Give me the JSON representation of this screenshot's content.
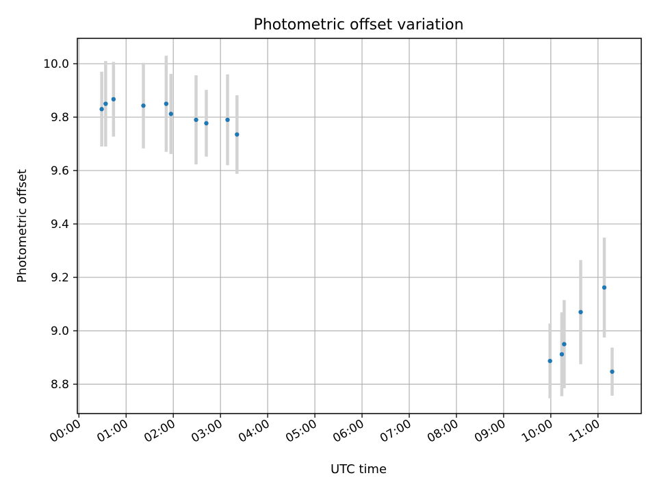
{
  "chart_data": {
    "type": "scatter",
    "title": "Photometric offset variation",
    "xlabel": "UTC time",
    "ylabel": "Photometric offset",
    "x_ticks": [
      "00:00",
      "01:00",
      "02:00",
      "03:00",
      "04:00",
      "05:00",
      "06:00",
      "07:00",
      "08:00",
      "09:00",
      "10:00",
      "11:00"
    ],
    "y_ticks": [
      "8.8",
      "9.0",
      "9.2",
      "9.4",
      "9.6",
      "9.8",
      "10.0"
    ],
    "xlim": [
      "00:00",
      "11:55"
    ],
    "ylim": [
      8.69,
      10.095
    ],
    "grid": true,
    "point_color": "#1f77b4",
    "errorbar_color": "#d3d3d3",
    "points": [
      {
        "x": "00:29",
        "y": 9.83,
        "err": 0.14
      },
      {
        "x": "00:34",
        "y": 9.85,
        "err": 0.16
      },
      {
        "x": "00:44",
        "y": 9.867,
        "err": 0.14
      },
      {
        "x": "01:22",
        "y": 9.843,
        "err": 0.16
      },
      {
        "x": "01:51",
        "y": 9.85,
        "err": 0.18
      },
      {
        "x": "01:57",
        "y": 9.812,
        "err": 0.15
      },
      {
        "x": "02:29",
        "y": 9.79,
        "err": 0.167
      },
      {
        "x": "02:42",
        "y": 9.777,
        "err": 0.125
      },
      {
        "x": "03:09",
        "y": 9.79,
        "err": 0.17
      },
      {
        "x": "03:21",
        "y": 9.735,
        "err": 0.147
      },
      {
        "x": "09:59",
        "y": 8.887,
        "err": 0.14
      },
      {
        "x": "10:14",
        "y": 8.912,
        "err": 0.157
      },
      {
        "x": "10:17",
        "y": 8.95,
        "err": 0.165
      },
      {
        "x": "10:38",
        "y": 9.07,
        "err": 0.195
      },
      {
        "x": "11:08",
        "y": 9.162,
        "err": 0.187
      },
      {
        "x": "11:18",
        "y": 8.847,
        "err": 0.09
      }
    ]
  }
}
